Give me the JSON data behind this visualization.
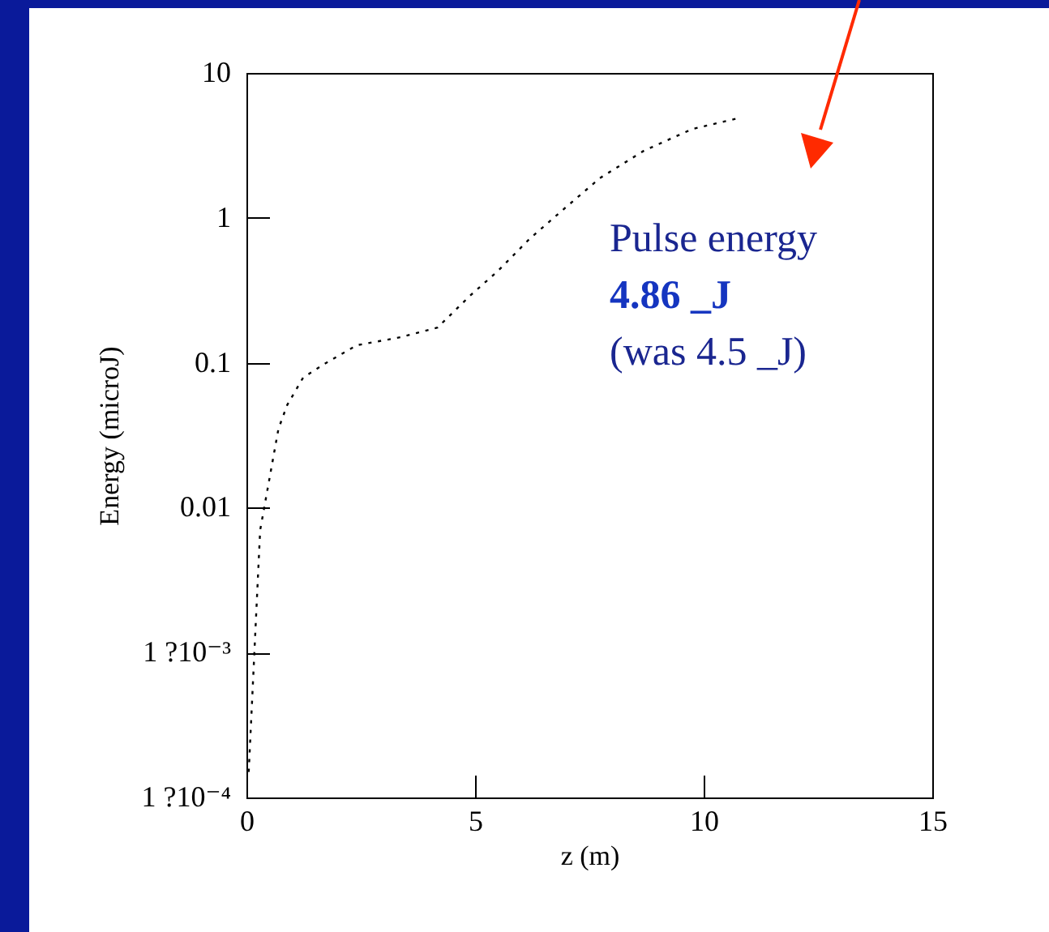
{
  "chart_data": {
    "type": "line",
    "xlabel": "z (m)",
    "ylabel": "Energy (microJ)",
    "x": [
      0.05,
      0.3,
      0.7,
      0.89,
      1.24,
      1.7,
      2.41,
      3.37,
      4.18,
      4.89,
      5.5,
      6.2,
      6.9,
      7.73,
      8.69,
      9.75,
      10.74
    ],
    "values": [
      0.00015,
      0.007,
      0.035,
      0.051,
      0.079,
      0.098,
      0.132,
      0.15,
      0.175,
      0.29,
      0.43,
      0.72,
      1.12,
      1.88,
      2.9,
      4.1,
      4.86
    ],
    "color": "#000000",
    "line_style": "dotted",
    "log": "y",
    "grid": false,
    "xlim": [
      0,
      15
    ],
    "xticks": [
      0,
      5,
      10,
      15
    ],
    "ylim": [
      0.0001,
      10
    ],
    "yticks": [
      {
        "value": 0.0001,
        "label": "1 ?10⁻⁴"
      },
      {
        "value": 0.001,
        "label": "1 ?10⁻³"
      },
      0.01,
      0.1,
      1,
      10
    ],
    "annotations": [
      "Pulse energy",
      "4.86 _J",
      "(was 4.5 _J)"
    ]
  }
}
